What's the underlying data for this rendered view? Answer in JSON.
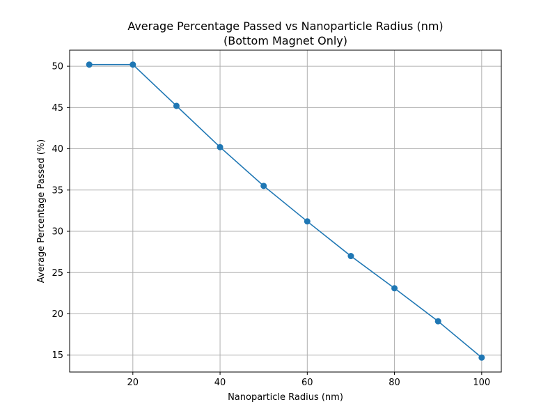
{
  "chart_data": {
    "type": "line",
    "title_lines": [
      "Average Percentage Passed vs Nanoparticle Radius (nm)",
      "(Bottom Magnet Only)"
    ],
    "xlabel": "Nanoparticle Radius (nm)",
    "ylabel": "Average Percentage Passed (%)",
    "x": [
      10,
      20,
      30,
      40,
      50,
      60,
      70,
      80,
      90,
      100
    ],
    "series": [
      {
        "values": [
          50.2,
          50.2,
          45.2,
          40.2,
          35.5,
          31.2,
          27.0,
          23.1,
          19.1,
          14.7
        ],
        "color": "#1f77b4",
        "marker": "circle"
      }
    ],
    "xlim": [
      5.5,
      104.5
    ],
    "ylim": [
      12.95,
      51.95
    ],
    "xticks": [
      20,
      40,
      60,
      80,
      100
    ],
    "yticks": [
      15,
      20,
      25,
      30,
      35,
      40,
      45,
      50
    ],
    "grid": true,
    "legend": "none"
  }
}
